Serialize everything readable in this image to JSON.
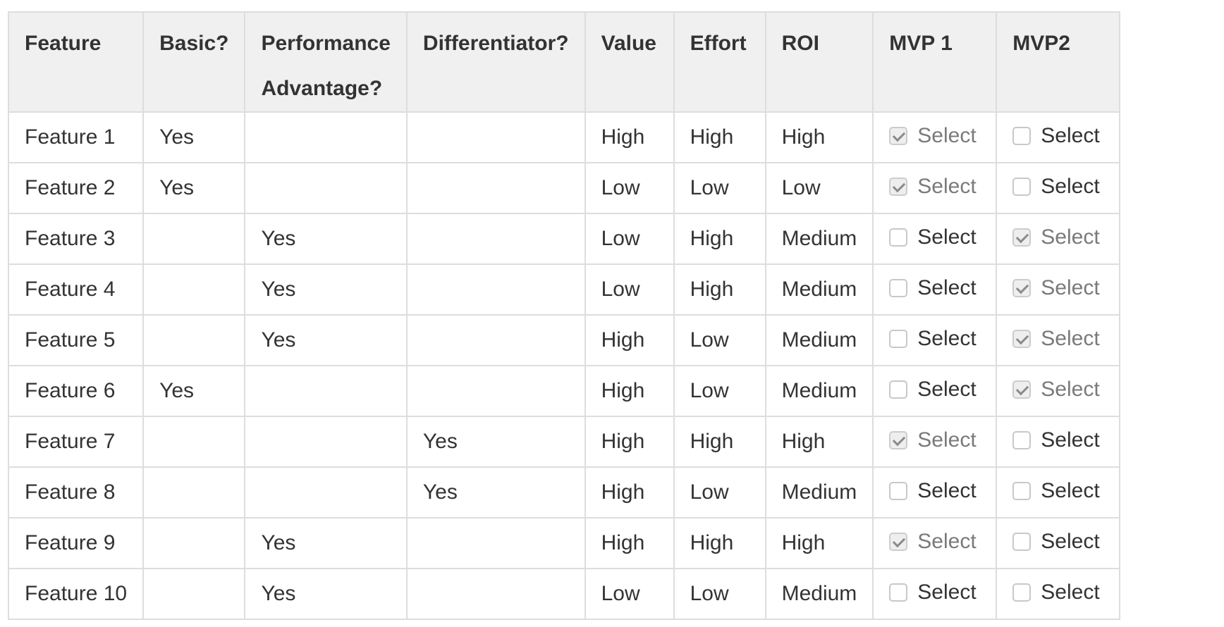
{
  "table": {
    "headers": [
      "Feature",
      "Basic?",
      "Performance Advantage?",
      "Differentiator?",
      "Value",
      "Effort",
      "ROI",
      "MVP 1",
      "MVP2"
    ],
    "select_label": "Select",
    "rows": [
      {
        "feature": "Feature 1",
        "basic": "Yes",
        "performance": "",
        "differentiator": "",
        "value": "High",
        "effort": "High",
        "roi": "High",
        "mvp1": true,
        "mvp2": false
      },
      {
        "feature": "Feature 2",
        "basic": "Yes",
        "performance": "",
        "differentiator": "",
        "value": "Low",
        "effort": "Low",
        "roi": "Low",
        "mvp1": true,
        "mvp2": false
      },
      {
        "feature": "Feature 3",
        "basic": "",
        "performance": "Yes",
        "differentiator": "",
        "value": "Low",
        "effort": "High",
        "roi": "Medium",
        "mvp1": false,
        "mvp2": true
      },
      {
        "feature": "Feature 4",
        "basic": "",
        "performance": "Yes",
        "differentiator": "",
        "value": "Low",
        "effort": "High",
        "roi": "Medium",
        "mvp1": false,
        "mvp2": true
      },
      {
        "feature": "Feature 5",
        "basic": "",
        "performance": "Yes",
        "differentiator": "",
        "value": "High",
        "effort": "Low",
        "roi": "Medium",
        "mvp1": false,
        "mvp2": true
      },
      {
        "feature": "Feature 6",
        "basic": "Yes",
        "performance": "",
        "differentiator": "",
        "value": "High",
        "effort": "Low",
        "roi": "Medium",
        "mvp1": false,
        "mvp2": true
      },
      {
        "feature": "Feature 7",
        "basic": "",
        "performance": "",
        "differentiator": "Yes",
        "value": "High",
        "effort": "High",
        "roi": "High",
        "mvp1": true,
        "mvp2": false
      },
      {
        "feature": "Feature 8",
        "basic": "",
        "performance": "",
        "differentiator": "Yes",
        "value": "High",
        "effort": "Low",
        "roi": "Medium",
        "mvp1": false,
        "mvp2": false
      },
      {
        "feature": "Feature 9",
        "basic": "",
        "performance": "Yes",
        "differentiator": "",
        "value": "High",
        "effort": "High",
        "roi": "High",
        "mvp1": true,
        "mvp2": false
      },
      {
        "feature": "Feature 10",
        "basic": "",
        "performance": "Yes",
        "differentiator": "",
        "value": "Low",
        "effort": "Low",
        "roi": "Medium",
        "mvp1": false,
        "mvp2": false
      }
    ]
  }
}
